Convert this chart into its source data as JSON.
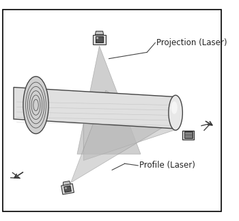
{
  "title": "",
  "background_color": "#ffffff",
  "border_color": "#000000",
  "figure_width": 3.5,
  "figure_height": 3.23,
  "dpi": 100,
  "cylinder_color": "#e8e8e8",
  "cylinder_stroke": "#555555",
  "triangle_fill": "#c8c8c8",
  "triangle_alpha": 0.7,
  "sensor_colors": {
    "body": "#d0d0d0",
    "dark": "#555555",
    "light": "#f0f0f0"
  },
  "label_projection": "Projection (Laser)",
  "label_profile": "Profile (Laser)",
  "label_fontsize": 8.5,
  "annotation_color": "#222222"
}
